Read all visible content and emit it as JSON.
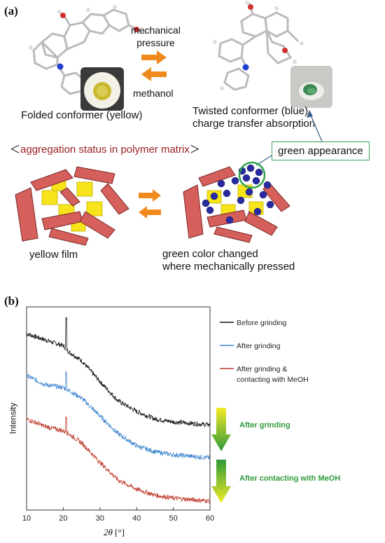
{
  "panel_a": {
    "label": "(a)",
    "mechanical_pressure": "mechanical\npressure",
    "methanol": "methanol",
    "folded_caption": "Folded conformer (yellow)",
    "twisted_caption_1": "Twisted conformer (blue)",
    "twisted_caption_2": "charge transfer absorption",
    "aggregation": "aggregation status in polymer matrix",
    "green_appearance": "green appearance",
    "yellow_film": "yellow film",
    "green_changed_1": "green color changed",
    "green_changed_2": "where mechanically pressed"
  },
  "panel_b": {
    "label": "(b)",
    "ylabel": "Intensity",
    "xlabel_symbol": "2θ",
    "xlabel_unit": "[°]",
    "arrow_label_1": "After grinding",
    "arrow_label_2": "After contacting with MeOH"
  },
  "chart_data": {
    "type": "line",
    "xlim": [
      10,
      60
    ],
    "xticks": [
      "10",
      "20",
      "30",
      "40",
      "50",
      "60"
    ],
    "ylabel": "Intensity",
    "grid": false,
    "legend_position": "right",
    "series": [
      {
        "name": "Before grinding",
        "color": "#111111",
        "x": [
          10,
          15,
          20,
          20.8,
          21.5,
          25,
          30,
          35,
          40,
          45,
          50,
          55,
          60
        ],
        "y": [
          90,
          86,
          82,
          100,
          78,
          72,
          58,
          45,
          38,
          33,
          31,
          30,
          29
        ]
      },
      {
        "name": "After grinding",
        "color": "#3f86d0",
        "x": [
          10,
          15,
          20,
          20.8,
          21.5,
          25,
          30,
          35,
          40,
          45,
          50,
          55,
          60
        ],
        "y": [
          62,
          56,
          54,
          64,
          52,
          47,
          35,
          23,
          15,
          11,
          9,
          8,
          7
        ]
      },
      {
        "name": "After grinding &\ncontacting with MeOH",
        "color": "#c0392b",
        "x": [
          10,
          15,
          20,
          20.8,
          21.5,
          25,
          30,
          35,
          40,
          45,
          50,
          55,
          60
        ],
        "y": [
          33,
          28,
          25,
          35,
          23,
          17,
          4,
          -8,
          -14,
          -18,
          -20,
          -21,
          -22
        ]
      }
    ]
  }
}
